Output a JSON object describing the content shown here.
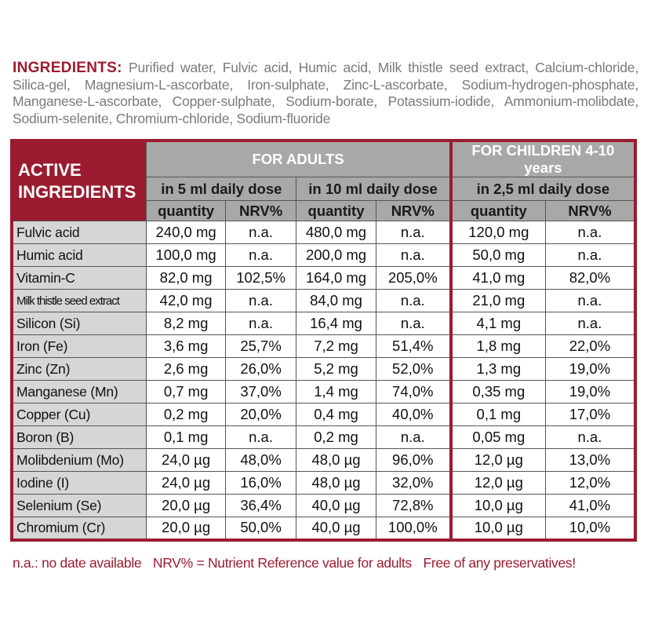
{
  "ingredients": {
    "label": "INGREDIENTS:",
    "text": "Purified water, Fulvic acid, Humic acid, Milk thistle seed extract, Calcium-chloride, Silica-gel, Magnesium-L-ascorbate, Iron-sulphate, Zinc-L-ascorbate, Sodium-hydrogen-phosphate, Manganese-L-ascorbate, Copper-sulphate, Sodium-borate, Potassium-iodide, Ammonium-molibdate, Sodium-selenite, Chromium-chloride, Sodium-fluoride"
  },
  "table": {
    "active_header_line1": "ACTIVE",
    "active_header_line2": "INGREDIENTS",
    "adults_header": "FOR ADULTS",
    "children_header": "FOR CHILDREN 4-10 years",
    "dose_5ml": "in 5 ml daily dose",
    "dose_10ml": "in 10 ml daily dose",
    "dose_2_5ml": "in 2,5 ml daily dose",
    "col_quantity": "quantity",
    "col_nrv": "NRV%",
    "rows": [
      {
        "name": "Fulvic acid",
        "q5": "240,0 mg",
        "n5": "n.a.",
        "q10": "480,0 mg",
        "n10": "n.a.",
        "qc": "120,0 mg",
        "nc": "n.a."
      },
      {
        "name": "Humic acid",
        "q5": "100,0 mg",
        "n5": "n.a.",
        "q10": "200,0 mg",
        "n10": "n.a.",
        "qc": "50,0 mg",
        "nc": "n.a."
      },
      {
        "name": "Vitamin-C",
        "q5": "82,0 mg",
        "n5": "102,5%",
        "q10": "164,0 mg",
        "n10": "205,0%",
        "qc": "41,0 mg",
        "nc": "82,0%"
      },
      {
        "name": "Milk thistle seed extract",
        "q5": "42,0 mg",
        "n5": "n.a.",
        "q10": "84,0 mg",
        "n10": "n.a.",
        "qc": "21,0 mg",
        "nc": "n.a."
      },
      {
        "name": "Silicon (Si)",
        "q5": "8,2 mg",
        "n5": "n.a.",
        "q10": "16,4 mg",
        "n10": "n.a.",
        "qc": "4,1 mg",
        "nc": "n.a."
      },
      {
        "name": "Iron (Fe)",
        "q5": "3,6 mg",
        "n5": "25,7%",
        "q10": "7,2 mg",
        "n10": "51,4%",
        "qc": "1,8 mg",
        "nc": "22,0%"
      },
      {
        "name": "Zinc (Zn)",
        "q5": "2,6 mg",
        "n5": "26,0%",
        "q10": "5,2 mg",
        "n10": "52,0%",
        "qc": "1,3 mg",
        "nc": "19,0%"
      },
      {
        "name": "Manganese (Mn)",
        "q5": "0,7 mg",
        "n5": "37,0%",
        "q10": "1,4 mg",
        "n10": "74,0%",
        "qc": "0,35 mg",
        "nc": "19,0%"
      },
      {
        "name": "Copper (Cu)",
        "q5": "0,2 mg",
        "n5": "20,0%",
        "q10": "0,4 mg",
        "n10": "40,0%",
        "qc": "0,1 mg",
        "nc": "17,0%"
      },
      {
        "name": "Boron (B)",
        "q5": "0,1 mg",
        "n5": "n.a.",
        "q10": "0,2 mg",
        "n10": "n.a.",
        "qc": "0,05 mg",
        "nc": "n.a."
      },
      {
        "name": "Molibdenium (Mo)",
        "q5": "24,0 µg",
        "n5": "48,0%",
        "q10": "48,0 µg",
        "n10": "96,0%",
        "qc": "12,0 µg",
        "nc": "13,0%"
      },
      {
        "name": "Iodine (I)",
        "q5": "24,0 µg",
        "n5": "16,0%",
        "q10": "48,0 µg",
        "n10": "32,0%",
        "qc": "12,0 µg",
        "nc": "12,0%"
      },
      {
        "name": "Selenium (Se)",
        "q5": "20,0 µg",
        "n5": "36,4%",
        "q10": "40,0 µg",
        "n10": "72,8%",
        "qc": "10,0 µg",
        "nc": "41,0%"
      },
      {
        "name": "Chromium (Cr)",
        "q5": "20,0 µg",
        "n5": "50,0%",
        "q10": "40,0 µg",
        "n10": "100,0%",
        "qc": "10,0 µg",
        "nc": "10,0%"
      }
    ]
  },
  "footnote": {
    "na": "n.a.: no date available",
    "nrv": "NRV% = Nutrient Reference value for adults",
    "preservatives": "Free of any preservatives!"
  }
}
